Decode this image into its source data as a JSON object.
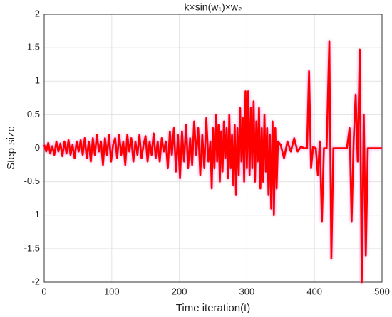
{
  "chart_data": {
    "type": "line",
    "title": "k×sin(w₁)×w₂",
    "x_label": "Time iteration(t)",
    "y_label": "Step size",
    "x": [
      0,
      3,
      6,
      9,
      12,
      15,
      18,
      21,
      24,
      27,
      30,
      33,
      36,
      39,
      42,
      45,
      48,
      51,
      54,
      57,
      60,
      63,
      66,
      69,
      72,
      75,
      78,
      81,
      84,
      87,
      90,
      93,
      96,
      99,
      102,
      105,
      108,
      111,
      114,
      117,
      120,
      123,
      126,
      129,
      132,
      135,
      138,
      141,
      144,
      147,
      150,
      153,
      156,
      159,
      162,
      165,
      168,
      171,
      174,
      177,
      180,
      183,
      186,
      189,
      192,
      195,
      198,
      201,
      204,
      207,
      210,
      213,
      216,
      219,
      222,
      225,
      228,
      231,
      234,
      237,
      240,
      243,
      246,
      248,
      250,
      252,
      254,
      256,
      258,
      260,
      262,
      264,
      266,
      268,
      270,
      272,
      274,
      276,
      278,
      280,
      282,
      284,
      286,
      288,
      290,
      292,
      294,
      296,
      298,
      300,
      302,
      304,
      306,
      308,
      310,
      312,
      314,
      316,
      318,
      320,
      322,
      324,
      326,
      328,
      330,
      332,
      334,
      336,
      338,
      340,
      342,
      344,
      346,
      350,
      355,
      360,
      365,
      370,
      375,
      380,
      385,
      389,
      392,
      395,
      398,
      402,
      405,
      408,
      411,
      414,
      418,
      422,
      425,
      428,
      433,
      438,
      443,
      448,
      452,
      455,
      458,
      461,
      464,
      467,
      470,
      473,
      476,
      479,
      485,
      490,
      495,
      500
    ],
    "values": [
      0.05,
      -0.05,
      0.08,
      -0.08,
      0.03,
      -0.1,
      0.1,
      -0.05,
      0.07,
      -0.12,
      0.1,
      -0.08,
      0.12,
      -0.1,
      0.05,
      -0.15,
      0.1,
      -0.05,
      0.12,
      -0.1,
      0.15,
      -0.15,
      0.1,
      -0.2,
      0.15,
      -0.1,
      0.2,
      -0.05,
      0.1,
      -0.25,
      0.15,
      -0.1,
      0.2,
      -0.2,
      0.05,
      0.15,
      -0.15,
      0.2,
      -0.1,
      0.1,
      -0.25,
      0.2,
      -0.05,
      0.15,
      -0.2,
      0.1,
      -0.1,
      0.2,
      -0.15,
      0.05,
      0.18,
      -0.2,
      0.1,
      -0.1,
      0.22,
      -0.15,
      0.1,
      -0.2,
      0.15,
      -0.05,
      0.1,
      -0.3,
      0.25,
      -0.1,
      0.3,
      -0.35,
      0.2,
      -0.45,
      0.25,
      -0.2,
      0.35,
      -0.3,
      0.15,
      -0.25,
      0.4,
      -0.1,
      0.3,
      -0.4,
      0.2,
      -0.3,
      0.45,
      -0.2,
      0.1,
      -0.6,
      0.3,
      -0.3,
      0.5,
      -0.2,
      0.35,
      -0.5,
      0.25,
      -0.35,
      0.4,
      -0.15,
      0.3,
      -0.45,
      0.5,
      -0.3,
      0.2,
      -0.55,
      0.35,
      -0.7,
      0.3,
      -0.4,
      0.6,
      -0.2,
      0.45,
      -0.5,
      0.85,
      -0.3,
      0.85,
      -0.4,
      0.6,
      -0.3,
      0.7,
      -0.5,
      0.4,
      -0.2,
      0.6,
      -0.6,
      0.3,
      -0.5,
      0.5,
      -0.35,
      0.3,
      -0.7,
      0.2,
      -0.9,
      0.4,
      -1.0,
      0.3,
      -0.6,
      0.1,
      0.05,
      -0.15,
      0.1,
      -0.05,
      0.15,
      -0.05,
      0.02,
      0,
      0,
      1.15,
      -0.3,
      0.02,
      0,
      -0.4,
      0.1,
      -1.1,
      0,
      0,
      1.6,
      -1.65,
      0,
      0,
      0,
      0,
      0,
      0.3,
      -1.1,
      0.1,
      0.8,
      -0.2,
      1.47,
      -2,
      0.5,
      -1.6,
      0,
      0,
      0,
      0,
      0
    ],
    "color": "#ff0000",
    "xlim": [
      0,
      500
    ],
    "xticks": [
      0,
      100,
      200,
      300,
      400,
      500
    ],
    "ylim": [
      -2,
      2
    ],
    "yticks": [
      -2,
      -1.5,
      -1,
      -0.5,
      0,
      0.5,
      1,
      1.5,
      2
    ],
    "grid": true
  }
}
